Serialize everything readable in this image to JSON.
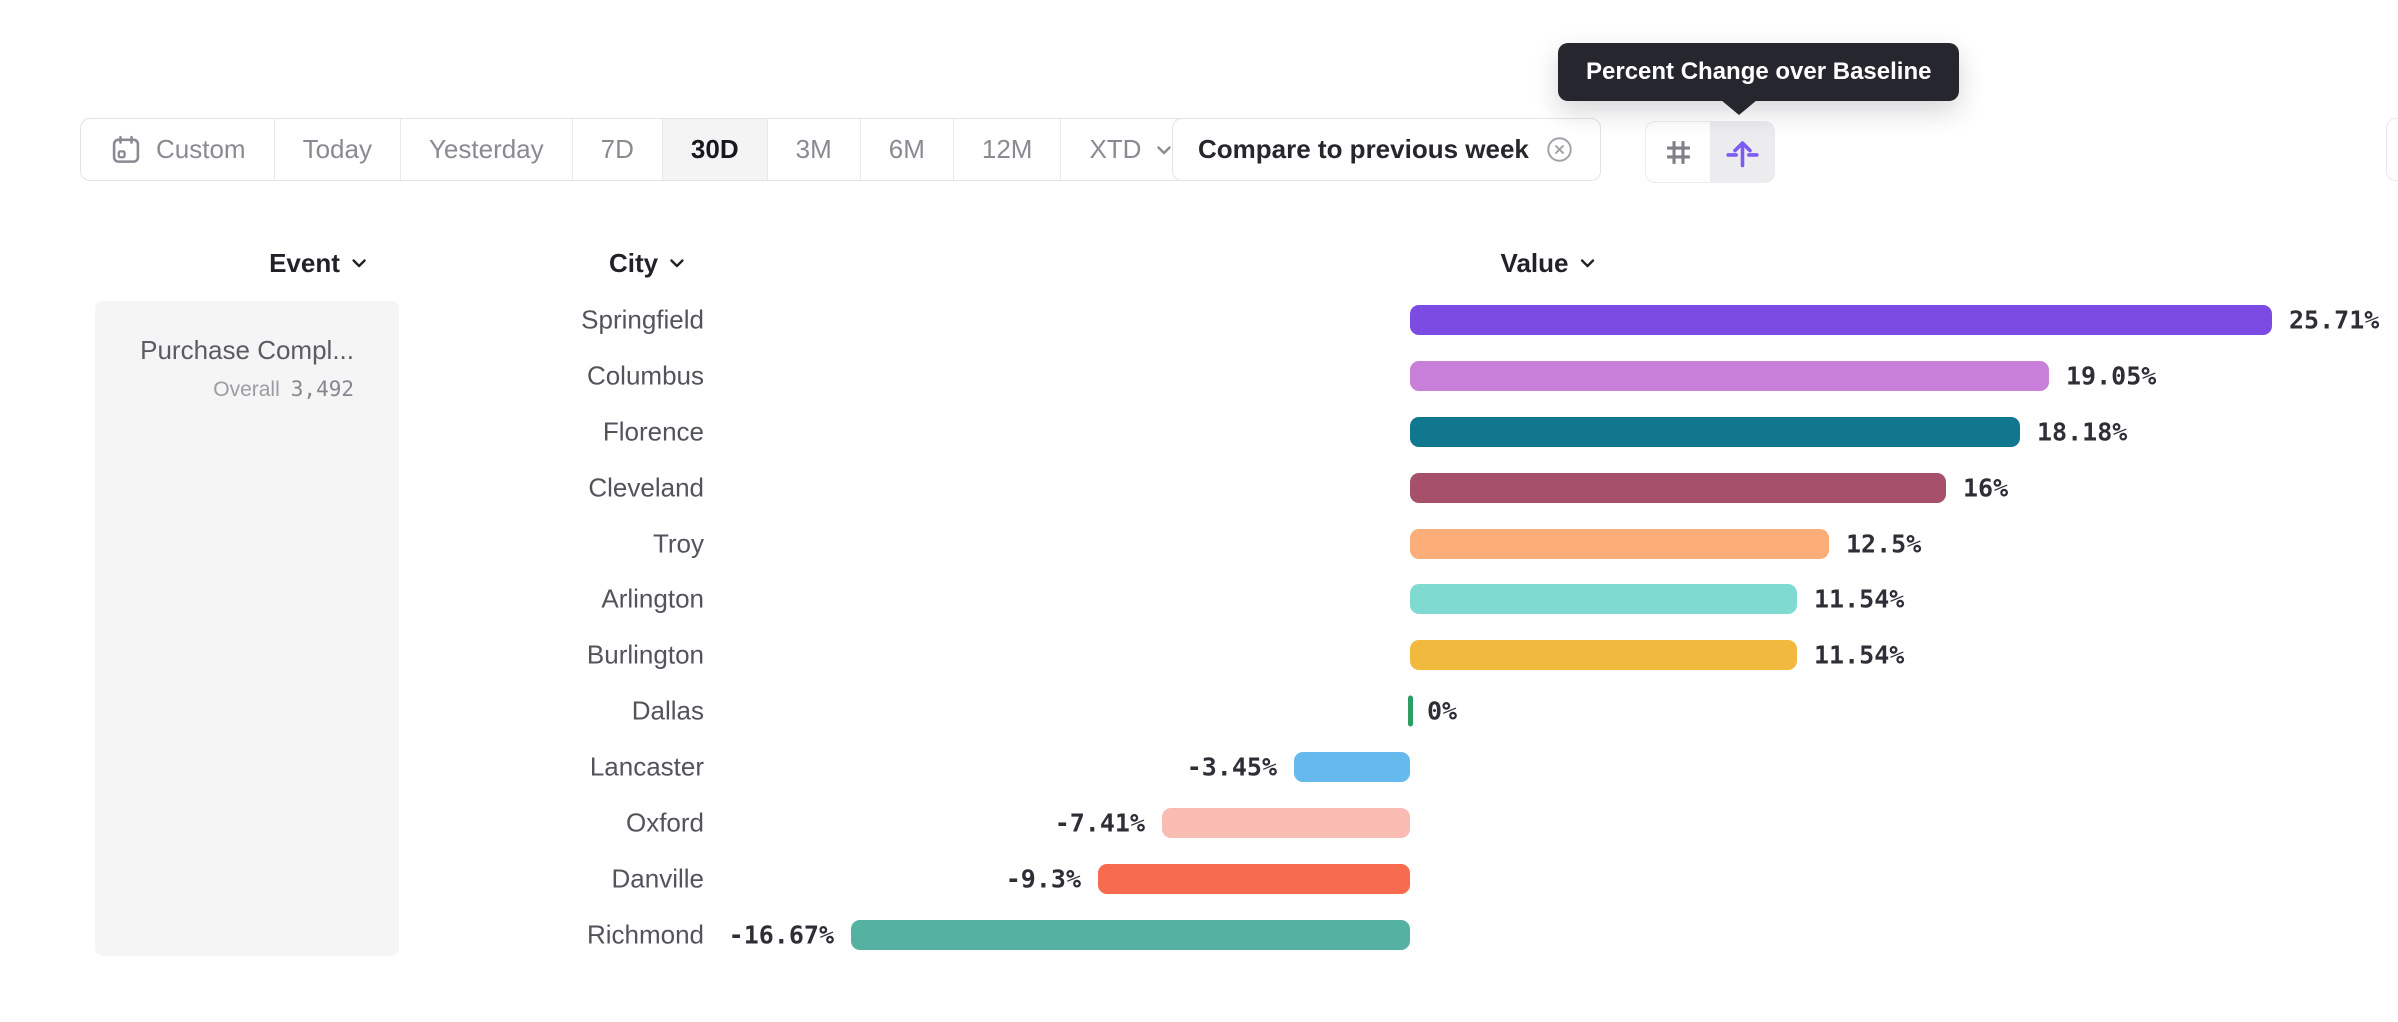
{
  "tooltip": {
    "text": "Percent Change over Baseline"
  },
  "toolbar": {
    "date_ranges": [
      {
        "label": "Custom",
        "icon": "calendar-icon",
        "selected": false
      },
      {
        "label": "Today",
        "selected": false
      },
      {
        "label": "Yesterday",
        "selected": false
      },
      {
        "label": "7D",
        "selected": false
      },
      {
        "label": "30D",
        "selected": true
      },
      {
        "label": "3M",
        "selected": false
      },
      {
        "label": "6M",
        "selected": false
      },
      {
        "label": "12M",
        "selected": false
      },
      {
        "label": "XTD",
        "selected": false,
        "has_dropdown": true
      }
    ],
    "compare_chip": {
      "label": "Compare to previous week",
      "dismiss_icon": "circle-x-icon"
    },
    "view_toggles": [
      {
        "name": "grid-view",
        "icon": "hash-icon",
        "selected": false
      },
      {
        "name": "percent-change-over-baseline",
        "icon": "arrow-up-baseline-icon",
        "selected": true
      }
    ],
    "accent_color": "#7b5bf0"
  },
  "columns": {
    "event": {
      "label": "Event"
    },
    "city": {
      "label": "City"
    },
    "value": {
      "label": "Value"
    }
  },
  "event_panel": {
    "name": "Purchase Compl...",
    "overall_label": "Overall",
    "overall_value": "3,492"
  },
  "chart_data": {
    "type": "bar",
    "orientation": "horizontal",
    "value_format": "percent",
    "baseline": 0,
    "categories": [
      "Springfield",
      "Columbus",
      "Florence",
      "Cleveland",
      "Troy",
      "Arlington",
      "Burlington",
      "Dallas",
      "Lancaster",
      "Oxford",
      "Danville",
      "Richmond"
    ],
    "values": [
      25.71,
      19.05,
      18.18,
      16,
      12.5,
      11.54,
      11.54,
      0,
      -3.45,
      -7.41,
      -9.3,
      -16.67
    ],
    "labels": [
      "25.71%",
      "19.05%",
      "18.18%",
      "16%",
      "12.5%",
      "11.54%",
      "11.54%",
      "0%",
      "-3.45%",
      "-7.41%",
      "-9.3%",
      "-16.67%"
    ],
    "colors": [
      "#7b4be4",
      "#c77fd9",
      "#11778f",
      "#a65069",
      "#fcae79",
      "#7fdbd1",
      "#f2b93f",
      "#2c9e63",
      "#65b9ec",
      "#f9bcb3",
      "#f76b4e",
      "#55b2a2"
    ],
    "xlim": [
      -20,
      27
    ]
  }
}
